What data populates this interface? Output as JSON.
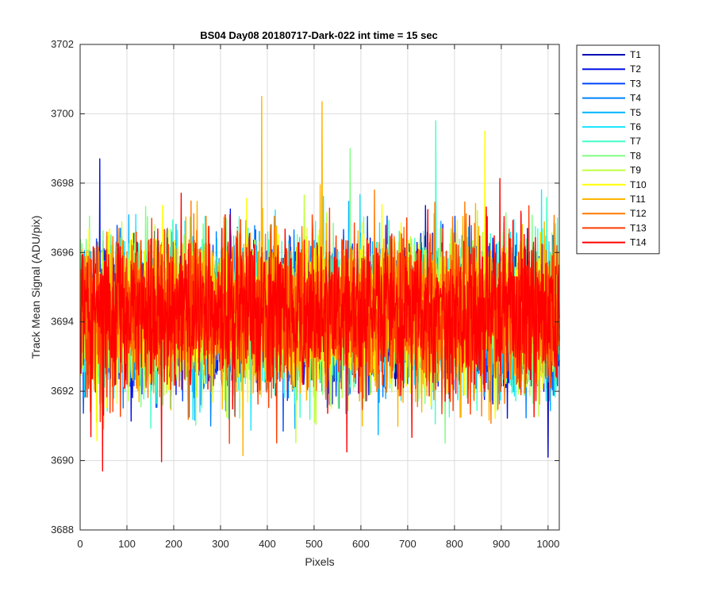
{
  "chart_data": {
    "type": "line",
    "title": "BS04 Day08 20180717-Dark-022 int time = 15 sec",
    "xlabel": "Pixels",
    "ylabel": "Track Mean Signal (ADU/pix)",
    "xlim": [
      0,
      1024
    ],
    "ylim": [
      3688,
      3702
    ],
    "xticks": [
      0,
      100,
      200,
      300,
      400,
      500,
      600,
      700,
      800,
      900,
      1000
    ],
    "yticks": [
      3688,
      3690,
      3692,
      3694,
      3696,
      3698,
      3700,
      3702
    ],
    "grid": true,
    "legend_position": "outside-top-right",
    "x": {
      "start": 1,
      "end": 1024,
      "step": 1
    },
    "series_summary": {
      "mean": 3694.2,
      "typical_min": 3691.5,
      "typical_max": 3698.0
    },
    "series": [
      {
        "name": "T1",
        "color": "#0000b5"
      },
      {
        "name": "T2",
        "color": "#0010e6"
      },
      {
        "name": "T3",
        "color": "#0046ff"
      },
      {
        "name": "T4",
        "color": "#0080ff"
      },
      {
        "name": "T5",
        "color": "#00b4ff"
      },
      {
        "name": "T6",
        "color": "#1ee6ff"
      },
      {
        "name": "T7",
        "color": "#40ffc8"
      },
      {
        "name": "T8",
        "color": "#7dff80"
      },
      {
        "name": "T9",
        "color": "#bfff3c"
      },
      {
        "name": "T10",
        "color": "#ffff00"
      },
      {
        "name": "T11",
        "color": "#ffb400"
      },
      {
        "name": "T12",
        "color": "#ff7800"
      },
      {
        "name": "T13",
        "color": "#ff3c00"
      },
      {
        "name": "T14",
        "color": "#ff0000"
      }
    ],
    "annotated_points": [
      {
        "series": "T2",
        "x": 42,
        "y": 3698.7
      },
      {
        "series": "T11",
        "x": 388,
        "y": 3700.5
      },
      {
        "series": "T11",
        "x": 517,
        "y": 3700.35
      },
      {
        "series": "T7",
        "x": 760,
        "y": 3699.8
      },
      {
        "series": "T10",
        "x": 865,
        "y": 3699.5
      },
      {
        "series": "T14",
        "x": 48,
        "y": 3689.7
      },
      {
        "series": "T14",
        "x": 570,
        "y": 3690.25
      },
      {
        "series": "T1",
        "x": 1000,
        "y": 3690.1
      }
    ]
  }
}
